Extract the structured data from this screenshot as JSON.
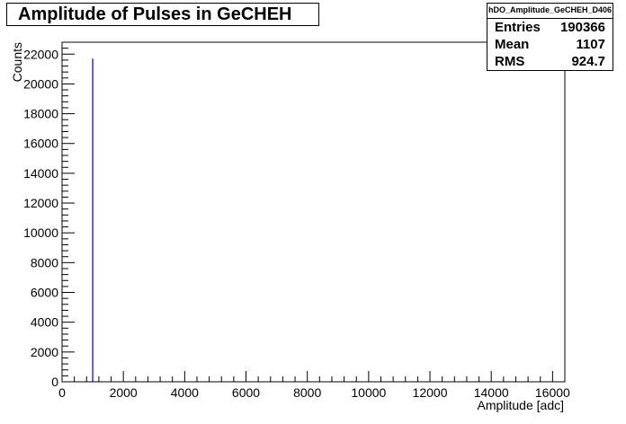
{
  "chart_data": {
    "type": "bar",
    "title": "Amplitude of Pulses in GeCHEH",
    "xlabel": "Amplitude [adc]",
    "ylabel": "Counts",
    "xlim": [
      0,
      16400
    ],
    "ylim": [
      0,
      22800
    ],
    "x_ticks": [
      "0",
      "2000",
      "4000",
      "6000",
      "8000",
      "10000",
      "12000",
      "14000",
      "16000"
    ],
    "y_ticks": [
      "0",
      "2000",
      "4000",
      "6000",
      "8000",
      "10000",
      "12000",
      "14000",
      "16000",
      "18000",
      "20000",
      "22000"
    ],
    "series": [
      {
        "x": [
          1000
        ],
        "values": [
          21700
        ]
      }
    ],
    "bar_color": "#000099",
    "stats": {
      "name": "hDO_Amplitude_GeCHEH_D406",
      "entries_label": "Entries",
      "entries": "190366",
      "mean_label": "Mean",
      "mean": "1107",
      "rms_label": "RMS",
      "rms": "924.7"
    }
  }
}
